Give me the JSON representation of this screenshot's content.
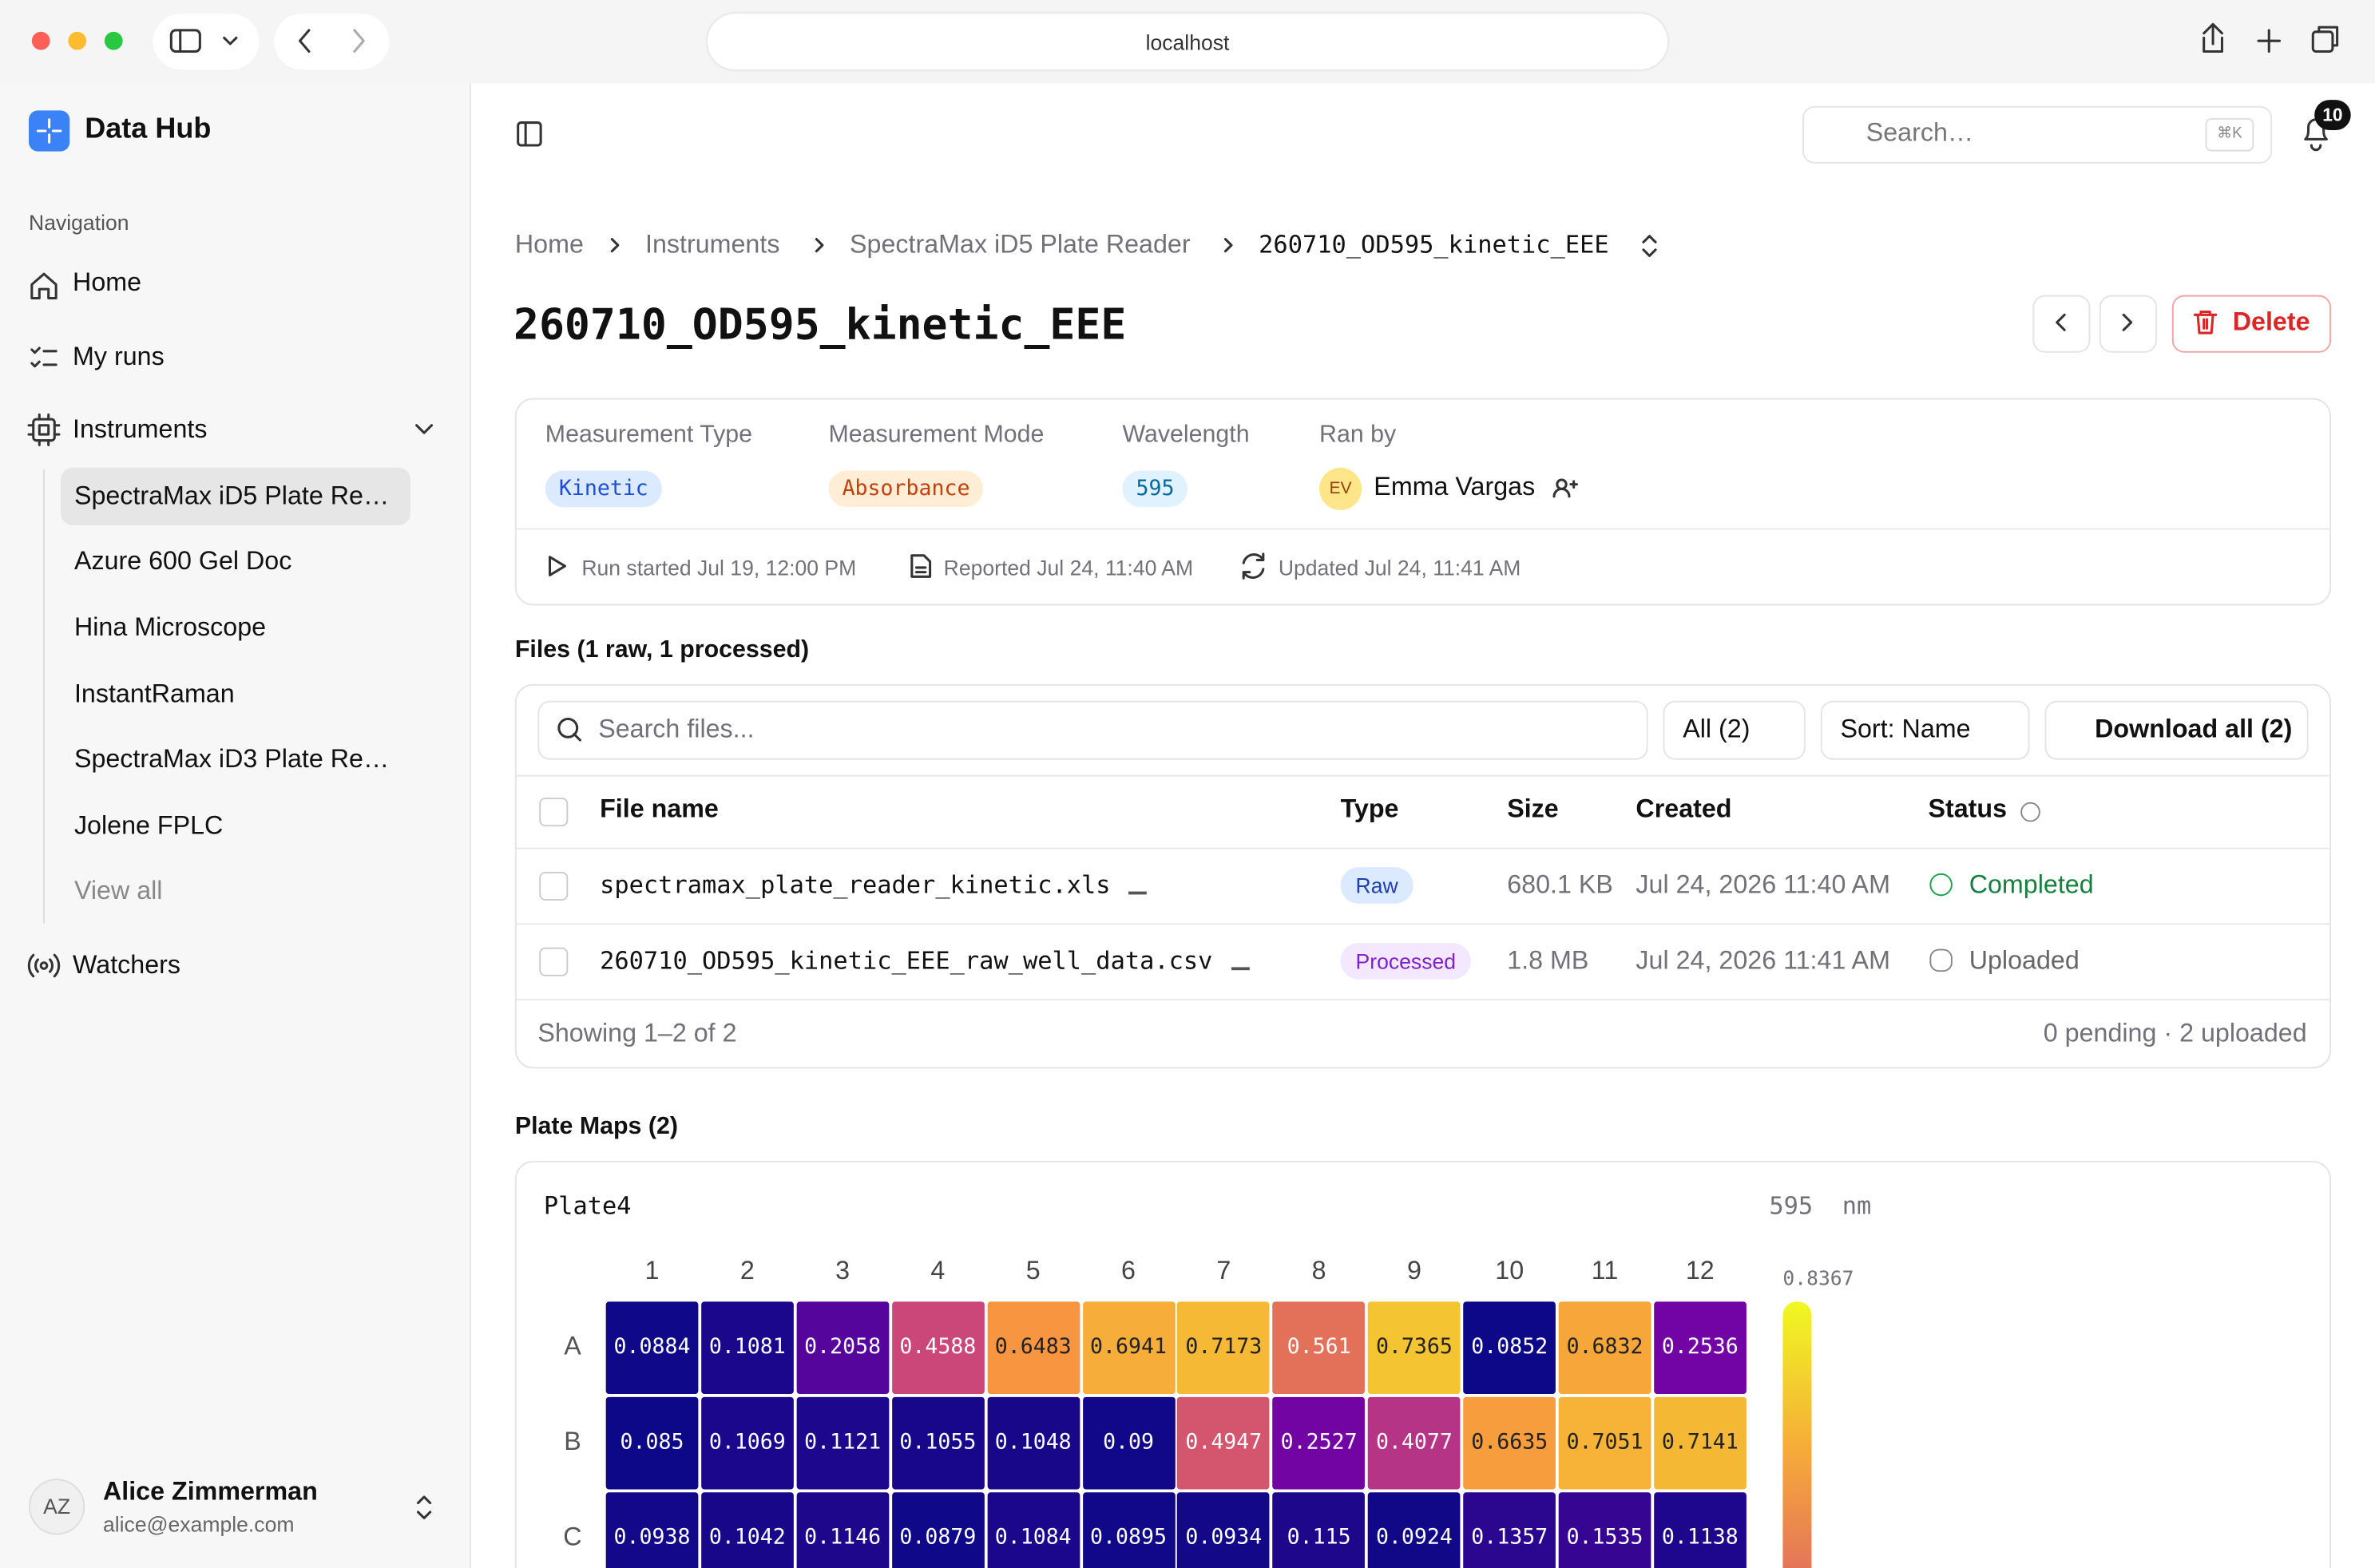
{
  "browser": {
    "url": "localhost"
  },
  "sidebar": {
    "app_name": "Data Hub",
    "section": "Navigation",
    "nav": [
      "Home",
      "My runs",
      "Instruments"
    ],
    "instruments": [
      "SpectraMax iD5 Plate Re…",
      "Azure 600 Gel Doc",
      "Hina Microscope",
      "InstantRaman",
      "SpectraMax iD3 Plate Re…",
      "Jolene FPLC",
      "View all"
    ],
    "watchers": "Watchers",
    "user": {
      "initials": "AZ",
      "name": "Alice Zimmerman",
      "email": "alice@example.com"
    }
  },
  "topbar": {
    "search": "Search…",
    "shortcut": "⌘K",
    "notifications": 10
  },
  "breadcrumb": [
    "Home",
    "Instruments",
    "SpectraMax iD5 Plate Reader",
    "260710_OD595_kinetic_EEE"
  ],
  "title": "260710_OD595_kinetic_EEE",
  "delete": "Delete",
  "meta": {
    "fields": [
      {
        "label": "Measurement Type",
        "value": "Kinetic"
      },
      {
        "label": "Measurement Mode",
        "value": "Absorbance"
      },
      {
        "label": "Wavelength",
        "value": "595"
      }
    ],
    "ran_by": {
      "label": "Ran by",
      "initials": "EV",
      "name": "Emma Vargas"
    },
    "times": [
      "Run started Jul 19, 12:00 PM",
      "Reported Jul 24, 11:40 AM",
      "Updated Jul 24, 11:41 AM"
    ]
  },
  "files": {
    "heading": "Files (1 raw, 1 processed)",
    "search": "Search files...",
    "filter": "All (2)",
    "sort": "Sort: Name",
    "download": "Download all (2)",
    "columns": [
      "File name",
      "Type",
      "Size",
      "Created",
      "Status"
    ],
    "rows": [
      [
        "spectramax_plate_reader_kinetic.xls",
        "Raw",
        "680.1 KB",
        "Jul 24, 2026 11:40 AM",
        "Completed"
      ],
      [
        "260710_OD595_kinetic_EEE_raw_well_data.csv",
        "Processed",
        "1.8 MB",
        "Jul 24, 2026 11:41 AM",
        "Uploaded"
      ]
    ],
    "footer_left": "Showing 1–2 of 2",
    "footer_right": "0 pending · 2 uploaded"
  },
  "plate_maps": {
    "heading": "Plate Maps (2)",
    "plates": [
      {
        "name": "Plate4",
        "unit": "595  nm",
        "columns": [
          1,
          2,
          3,
          4,
          5,
          6,
          7,
          8,
          9,
          10,
          11,
          12
        ],
        "rows": [
          "A",
          "B",
          "C"
        ],
        "values": [
          [
            0.0884,
            0.1081,
            0.2058,
            0.4588,
            0.6483,
            0.6941,
            0.7173,
            0.561,
            0.7365,
            0.0852,
            0.6832,
            0.2536
          ],
          [
            0.085,
            0.1069,
            0.1121,
            0.1055,
            0.1048,
            0.09,
            0.4947,
            0.2527,
            0.4077,
            0.6635,
            0.7051,
            0.7141
          ],
          [
            0.0938,
            0.1042,
            0.1146,
            0.0879,
            0.1084,
            0.0895,
            0.0934,
            0.115,
            0.0924,
            0.1357,
            0.1535,
            0.1138
          ]
        ],
        "scale_max": 0.8367
      }
    ]
  }
}
